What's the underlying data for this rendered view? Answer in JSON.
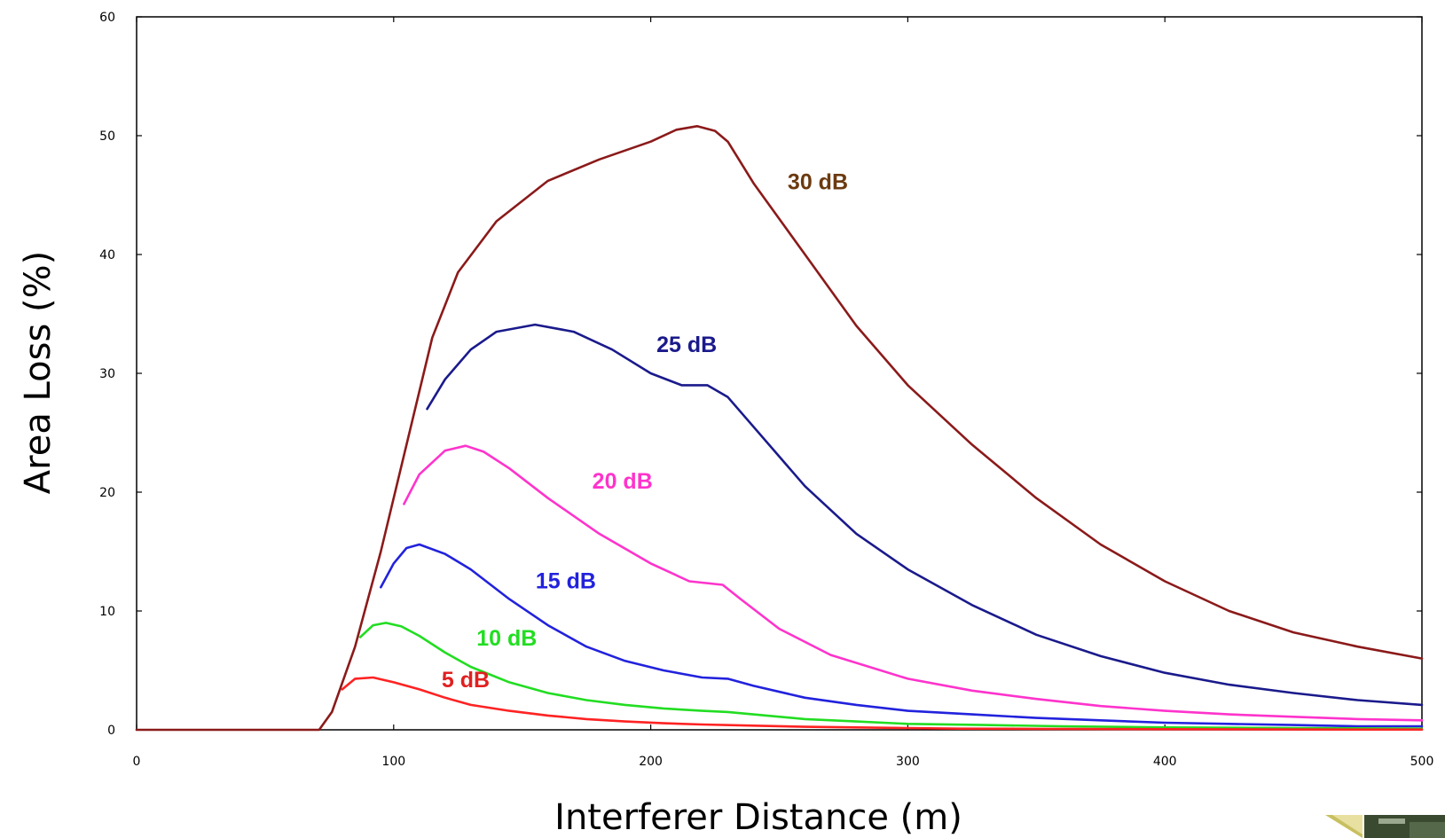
{
  "chart_data": {
    "type": "line",
    "title": "",
    "xlabel": "Interferer Distance (m)",
    "ylabel": "Area Loss (%)",
    "xlim": [
      0,
      500
    ],
    "ylim": [
      0,
      60
    ],
    "x_ticks": [
      0,
      100,
      200,
      300,
      400,
      500
    ],
    "y_ticks": [
      0,
      10,
      20,
      30,
      40,
      50,
      60
    ],
    "grid": false,
    "legend": "none (curves labeled inline)",
    "series": [
      {
        "name": "30 dB",
        "color": "#8B1A1A",
        "label_color": "#6B3A10",
        "points": [
          [
            0,
            0
          ],
          [
            71,
            0
          ],
          [
            76,
            1.5
          ],
          [
            85,
            7
          ],
          [
            95,
            15
          ],
          [
            105,
            24
          ],
          [
            115,
            33
          ],
          [
            125,
            38.5
          ],
          [
            140,
            42.8
          ],
          [
            160,
            46.2
          ],
          [
            180,
            48
          ],
          [
            200,
            49.5
          ],
          [
            210,
            50.5
          ],
          [
            218,
            50.8
          ],
          [
            225,
            50.4
          ],
          [
            230,
            49.5
          ],
          [
            240,
            46
          ],
          [
            260,
            40
          ],
          [
            280,
            34
          ],
          [
            300,
            29
          ],
          [
            325,
            24
          ],
          [
            350,
            19.5
          ],
          [
            375,
            15.6
          ],
          [
            400,
            12.5
          ],
          [
            425,
            10
          ],
          [
            450,
            8.2
          ],
          [
            475,
            7
          ],
          [
            500,
            6
          ]
        ]
      },
      {
        "name": "25 dB",
        "color": "#1A1A8C",
        "label_color": "#1A1A8C",
        "points": [
          [
            113,
            27
          ],
          [
            120,
            29.5
          ],
          [
            130,
            32
          ],
          [
            140,
            33.5
          ],
          [
            155,
            34.1
          ],
          [
            170,
            33.5
          ],
          [
            185,
            32
          ],
          [
            200,
            30
          ],
          [
            212,
            29
          ],
          [
            222,
            29
          ],
          [
            230,
            28
          ],
          [
            240,
            25.5
          ],
          [
            260,
            20.5
          ],
          [
            280,
            16.5
          ],
          [
            300,
            13.5
          ],
          [
            325,
            10.5
          ],
          [
            350,
            8
          ],
          [
            375,
            6.2
          ],
          [
            400,
            4.8
          ],
          [
            425,
            3.8
          ],
          [
            450,
            3.1
          ],
          [
            475,
            2.5
          ],
          [
            500,
            2.1
          ]
        ]
      },
      {
        "name": "20 dB",
        "color": "#FF33CC",
        "label_color": "#FF33CC",
        "points": [
          [
            104,
            19
          ],
          [
            110,
            21.5
          ],
          [
            120,
            23.5
          ],
          [
            128,
            23.9
          ],
          [
            135,
            23.4
          ],
          [
            145,
            22
          ],
          [
            160,
            19.5
          ],
          [
            180,
            16.5
          ],
          [
            200,
            14
          ],
          [
            215,
            12.5
          ],
          [
            228,
            12.2
          ],
          [
            235,
            11
          ],
          [
            250,
            8.5
          ],
          [
            270,
            6.3
          ],
          [
            300,
            4.3
          ],
          [
            325,
            3.3
          ],
          [
            350,
            2.6
          ],
          [
            375,
            2
          ],
          [
            400,
            1.6
          ],
          [
            425,
            1.3
          ],
          [
            450,
            1.1
          ],
          [
            475,
            0.9
          ],
          [
            500,
            0.8
          ]
        ]
      },
      {
        "name": "15 dB",
        "color": "#2222DD",
        "label_color": "#2222DD",
        "points": [
          [
            95,
            12
          ],
          [
            100,
            14
          ],
          [
            105,
            15.3
          ],
          [
            110,
            15.6
          ],
          [
            120,
            14.8
          ],
          [
            130,
            13.5
          ],
          [
            145,
            11
          ],
          [
            160,
            8.8
          ],
          [
            175,
            7
          ],
          [
            190,
            5.8
          ],
          [
            205,
            5
          ],
          [
            220,
            4.4
          ],
          [
            230,
            4.3
          ],
          [
            240,
            3.7
          ],
          [
            260,
            2.7
          ],
          [
            280,
            2.1
          ],
          [
            300,
            1.6
          ],
          [
            325,
            1.3
          ],
          [
            350,
            1
          ],
          [
            375,
            0.8
          ],
          [
            400,
            0.6
          ],
          [
            425,
            0.5
          ],
          [
            450,
            0.4
          ],
          [
            475,
            0.3
          ],
          [
            500,
            0.3
          ]
        ]
      },
      {
        "name": "10 dB",
        "color": "#22DD22",
        "label_color": "#22DD22",
        "points": [
          [
            87,
            7.8
          ],
          [
            92,
            8.8
          ],
          [
            97,
            9
          ],
          [
            103,
            8.7
          ],
          [
            110,
            7.9
          ],
          [
            120,
            6.5
          ],
          [
            130,
            5.3
          ],
          [
            145,
            4
          ],
          [
            160,
            3.1
          ],
          [
            175,
            2.5
          ],
          [
            190,
            2.1
          ],
          [
            205,
            1.8
          ],
          [
            220,
            1.6
          ],
          [
            230,
            1.5
          ],
          [
            245,
            1.2
          ],
          [
            260,
            0.9
          ],
          [
            280,
            0.7
          ],
          [
            300,
            0.5
          ],
          [
            330,
            0.4
          ],
          [
            360,
            0.3
          ],
          [
            400,
            0.2
          ],
          [
            450,
            0.15
          ],
          [
            500,
            0.1
          ]
        ]
      },
      {
        "name": "5 dB",
        "color": "#FF2222",
        "label_color": "#E02020",
        "points": [
          [
            80,
            3.4
          ],
          [
            85,
            4.3
          ],
          [
            92,
            4.4
          ],
          [
            100,
            4
          ],
          [
            110,
            3.4
          ],
          [
            120,
            2.7
          ],
          [
            130,
            2.1
          ],
          [
            145,
            1.6
          ],
          [
            160,
            1.2
          ],
          [
            175,
            0.9
          ],
          [
            190,
            0.7
          ],
          [
            205,
            0.55
          ],
          [
            220,
            0.45
          ],
          [
            240,
            0.35
          ],
          [
            260,
            0.25
          ],
          [
            280,
            0.2
          ],
          [
            300,
            0.15
          ],
          [
            320,
            0.1
          ],
          [
            350,
            0.08
          ],
          [
            400,
            0.05
          ],
          [
            450,
            0.03
          ],
          [
            500,
            0.02
          ]
        ]
      }
    ],
    "curve_labels": [
      {
        "text": "30 dB",
        "x": 265,
        "y": 45.5
      },
      {
        "text": "25 dB",
        "x": 214,
        "y": 31.8
      },
      {
        "text": "20 dB",
        "x": 189,
        "y": 20.3
      },
      {
        "text": "15 dB",
        "x": 167,
        "y": 11.9
      },
      {
        "text": "10 dB",
        "x": 144,
        "y": 7.1
      },
      {
        "text": "5 dB",
        "x": 128,
        "y": 3.6
      }
    ]
  }
}
